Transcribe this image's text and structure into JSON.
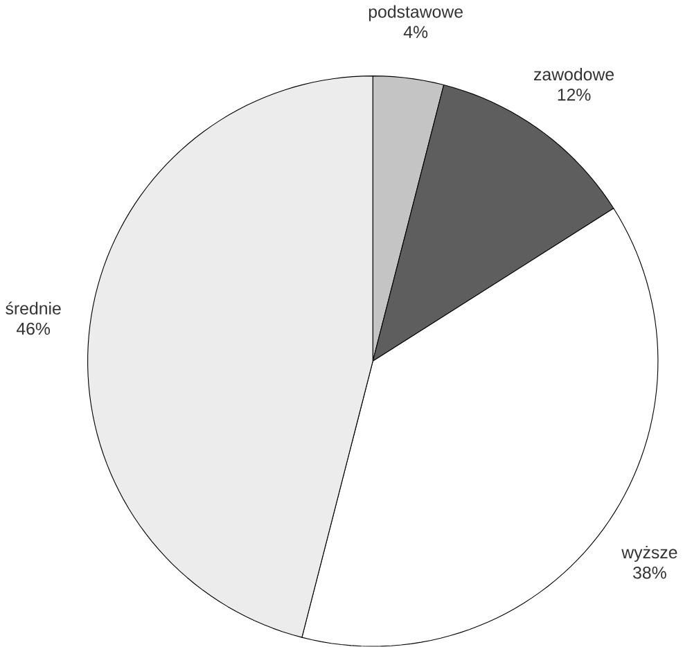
{
  "chart_data": {
    "type": "pie",
    "categories": [
      "podstawowe",
      "zawodowe",
      "wyższe",
      "średnie"
    ],
    "values": [
      4,
      12,
      38,
      46
    ],
    "value_labels": [
      "4%",
      "12%",
      "38%",
      "46%"
    ],
    "colors": [
      "#c4c4c4",
      "#5e5e5e",
      "#ffffff",
      "#ececec"
    ]
  }
}
